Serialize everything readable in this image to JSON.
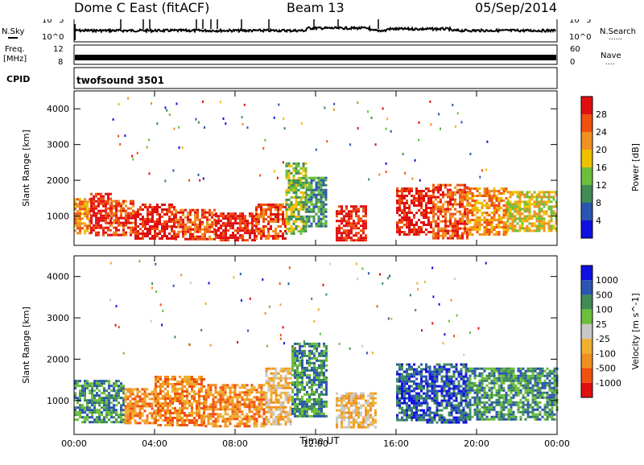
{
  "header": {
    "station": "Dome C East (fitACF)",
    "beam": "Beam 13",
    "date": "05/Sep/2014"
  },
  "side_labels": {
    "nsky": "N.Sky",
    "nsearch": "N.Search",
    "freq_line1": "Freq.",
    "freq_line2": "[MHz]",
    "nave": "Nave",
    "cpid": "CPID",
    "dots": "......",
    "dots_short": "...."
  },
  "noise_panel": {
    "left_ticks": [
      "10^5",
      "10^0"
    ],
    "right_ticks": [
      "10^5",
      "10^0"
    ]
  },
  "freq_panel": {
    "left_ticks": [
      "12",
      "8"
    ],
    "right_ticks": [
      "60",
      "0"
    ]
  },
  "cpid_panel": {
    "program": "twofsound 3501"
  },
  "colors": {
    "power": [
      "#1010e0",
      "#2a55b0",
      "#3f8c55",
      "#6cbf3a",
      "#f0c000",
      "#f09020",
      "#f05010",
      "#e01010"
    ],
    "velocity": [
      "#e01010",
      "#f05010",
      "#f09020",
      "#f0b030",
      "#c8c8c8",
      "#6cbf3a",
      "#3f8c55",
      "#2a55b0",
      "#1010e0"
    ]
  },
  "chart_data": [
    {
      "type": "heatmap",
      "name": "Power",
      "ylabel": "Slant Range [km]",
      "xlim": [
        0,
        24
      ],
      "ylim": [
        180,
        4500
      ],
      "y_ticks": [
        "1000",
        "2000",
        "3000",
        "4000"
      ],
      "x_tick_labels": [
        "00:00",
        "04:00",
        "08:00",
        "12:00",
        "16:00",
        "20:00",
        "00:00"
      ],
      "colorbar": {
        "label": "Power [dB]",
        "ticks": [
          "4",
          "8",
          "12",
          "16",
          "20",
          "24",
          "28"
        ]
      },
      "regions": [
        {
          "x": [
            0.0,
            0.8
          ],
          "y": [
            500,
            1500
          ],
          "level": 5
        },
        {
          "x": [
            0.8,
            1.8
          ],
          "y": [
            450,
            1650
          ],
          "level": 7
        },
        {
          "x": [
            1.8,
            3.0
          ],
          "y": [
            500,
            1450
          ],
          "level": 6
        },
        {
          "x": [
            3.0,
            5.0
          ],
          "y": [
            400,
            1350
          ],
          "level": 7
        },
        {
          "x": [
            5.0,
            7.0
          ],
          "y": [
            350,
            1200
          ],
          "level": 6
        },
        {
          "x": [
            7.0,
            9.0
          ],
          "y": [
            300,
            1100
          ],
          "level": 7
        },
        {
          "x": [
            9.0,
            10.5
          ],
          "y": [
            350,
            1350
          ],
          "level": 6
        },
        {
          "x": [
            10.5,
            11.5
          ],
          "y": [
            500,
            2500
          ],
          "level": 3
        },
        {
          "x": [
            11.5,
            12.5
          ],
          "y": [
            700,
            2100
          ],
          "level": 2
        },
        {
          "x": [
            13.0,
            14.5
          ],
          "y": [
            350,
            1300
          ],
          "level": 7
        },
        {
          "x": [
            16.0,
            17.8
          ],
          "y": [
            500,
            1800
          ],
          "level": 7
        },
        {
          "x": [
            17.8,
            19.5
          ],
          "y": [
            400,
            1900
          ],
          "level": 6
        },
        {
          "x": [
            19.5,
            21.5
          ],
          "y": [
            500,
            1800
          ],
          "level": 5
        },
        {
          "x": [
            21.5,
            24.0
          ],
          "y": [
            600,
            1700
          ],
          "level": 4
        }
      ]
    },
    {
      "type": "heatmap",
      "name": "Velocity",
      "ylabel": "Slant Range [km]",
      "xlabel": "Time UT",
      "xlim": [
        0,
        24
      ],
      "ylim": [
        180,
        4500
      ],
      "y_ticks": [
        "1000",
        "2000",
        "3000",
        "4000"
      ],
      "x_tick_labels": [
        "00:00",
        "04:00",
        "08:00",
        "12:00",
        "16:00",
        "20:00",
        "00:00"
      ],
      "colorbar": {
        "label": "Velocity [m s^-1]",
        "ticks": [
          "1000",
          "500",
          "100",
          "25",
          "-25",
          "-100",
          "-500",
          "-1000"
        ]
      },
      "regions": [
        {
          "x": [
            0.0,
            2.5
          ],
          "y": [
            500,
            1500
          ],
          "level": 6
        },
        {
          "x": [
            2.5,
            4.0
          ],
          "y": [
            450,
            1300
          ],
          "level": 2
        },
        {
          "x": [
            4.0,
            6.5
          ],
          "y": [
            400,
            1600
          ],
          "level": 2
        },
        {
          "x": [
            6.5,
            9.5
          ],
          "y": [
            350,
            1400
          ],
          "level": 2
        },
        {
          "x": [
            9.5,
            10.8
          ],
          "y": [
            450,
            1800
          ],
          "level": 3
        },
        {
          "x": [
            10.8,
            12.5
          ],
          "y": [
            600,
            2400
          ],
          "level": 6
        },
        {
          "x": [
            13.0,
            15.0
          ],
          "y": [
            350,
            1200
          ],
          "level": 3
        },
        {
          "x": [
            16.0,
            17.5
          ],
          "y": [
            500,
            1900
          ],
          "level": 7
        },
        {
          "x": [
            17.5,
            19.5
          ],
          "y": [
            450,
            1900
          ],
          "level": 7
        },
        {
          "x": [
            19.5,
            24.0
          ],
          "y": [
            550,
            1800
          ],
          "level": 6
        }
      ]
    }
  ]
}
